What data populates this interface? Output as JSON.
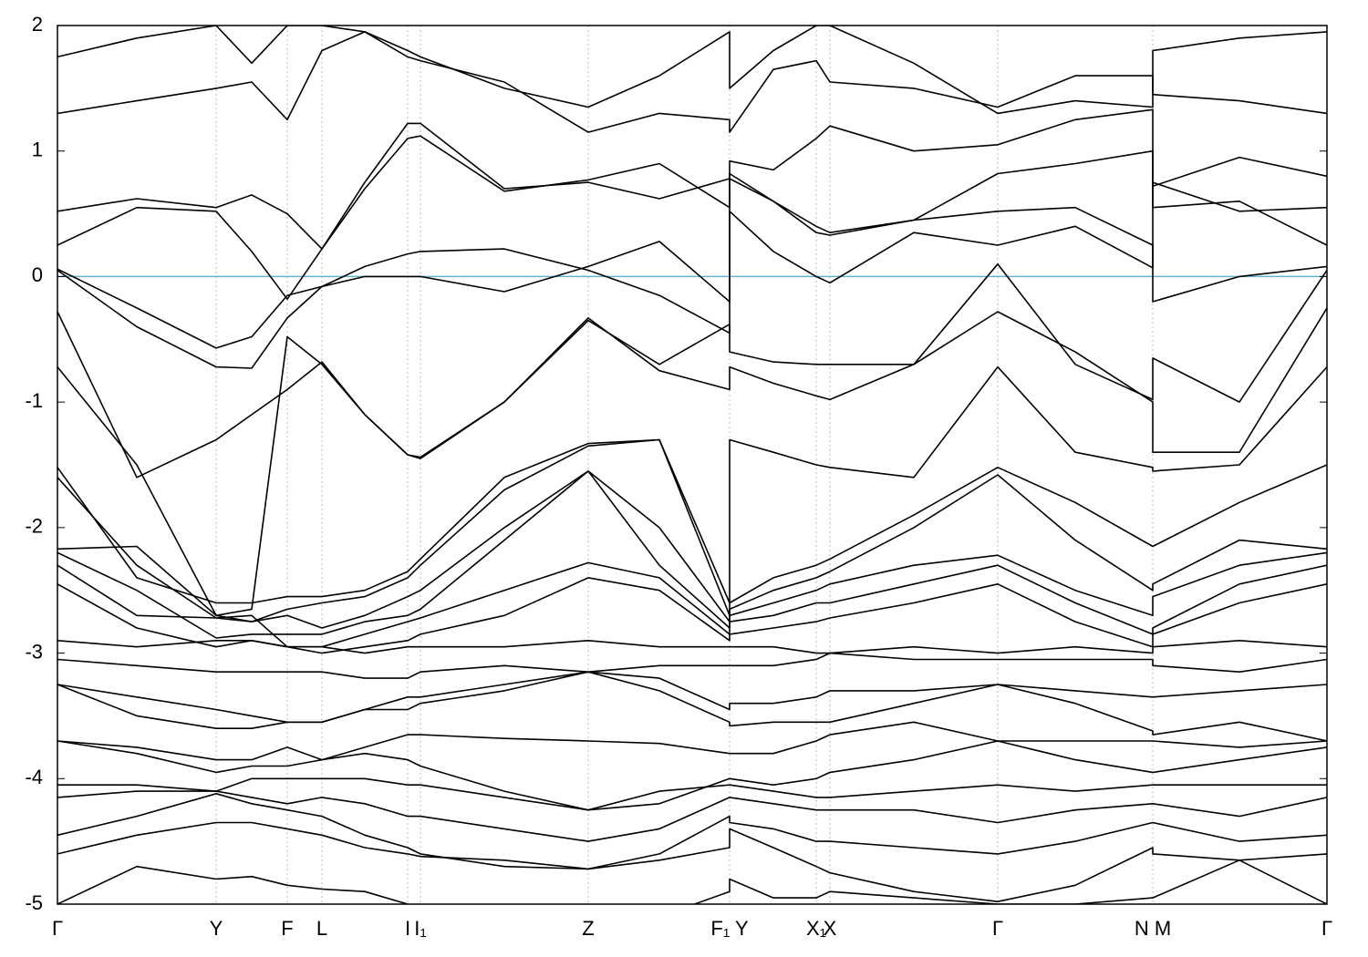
{
  "chart_data": {
    "type": "line",
    "color": "#000000",
    "xgrid": true,
    "zero_line": {
      "value": 0,
      "color": "#5fb4c8"
    },
    "xlim": [
      0,
      13.92
    ],
    "ylim": [
      -5,
      2
    ],
    "yticks": [
      -5,
      -4,
      -3,
      -2,
      -1,
      0,
      1,
      2
    ],
    "xticks": [
      {
        "value": 0,
        "label": "Γ"
      },
      {
        "value": 1.74,
        "label": "Y"
      },
      {
        "value": 2.52,
        "label": "F"
      },
      {
        "value": 2.9,
        "label": "L"
      },
      {
        "value": 3.84,
        "label": "I"
      },
      {
        "value": 3.98,
        "label": "I₁"
      },
      {
        "value": 5.82,
        "label": "Z"
      },
      {
        "value": 7.37,
        "label": "F₁ Y"
      },
      {
        "value": 8.32,
        "label": "X₁"
      },
      {
        "value": 8.47,
        "label": "X"
      },
      {
        "value": 10.31,
        "label": "Γ"
      },
      {
        "value": 12.01,
        "label": "N M"
      },
      {
        "value": 13.92,
        "label": "Γ"
      }
    ],
    "x": [
      0,
      0.87,
      1.74,
      2.13,
      2.52,
      2.9,
      3.37,
      3.84,
      3.98,
      4.9,
      5.82,
      6.6,
      7.37,
      7.37,
      7.85,
      8.32,
      8.47,
      9.39,
      10.31,
      11.16,
      12.01,
      12.01,
      12.96,
      13.92
    ],
    "series": [
      {
        "values": [
          0.06,
          -0.25,
          -0.57,
          -0.48,
          -0.15,
          -0.08,
          0.0,
          0.0,
          0.0,
          -0.12,
          0.08,
          0.28,
          -0.2,
          0.52,
          0.2,
          0.0,
          -0.05,
          0.35,
          0.25,
          0.4,
          0.07,
          0.75,
          0.52,
          0.55
        ]
      },
      {
        "values": [
          0.05,
          -0.4,
          -0.72,
          -0.73,
          -0.33,
          -0.08,
          0.08,
          0.18,
          0.2,
          0.22,
          0.05,
          -0.15,
          -0.45,
          0.78,
          0.6,
          0.35,
          0.33,
          0.45,
          0.52,
          0.55,
          0.25,
          -0.2,
          0.0,
          0.08
        ]
      },
      {
        "values": [
          0.25,
          0.55,
          0.52,
          0.2,
          -0.18,
          0.22,
          0.7,
          1.1,
          1.12,
          0.68,
          0.77,
          0.9,
          0.55,
          0.82,
          0.6,
          0.4,
          0.35,
          0.45,
          0.82,
          0.9,
          1.0,
          0.55,
          0.6,
          0.25
        ]
      },
      {
        "values": [
          0.52,
          0.62,
          0.55,
          0.65,
          0.5,
          0.22,
          0.75,
          1.22,
          1.22,
          0.7,
          0.75,
          0.62,
          0.78,
          0.92,
          0.85,
          1.1,
          1.2,
          1.0,
          1.05,
          1.25,
          1.33,
          0.72,
          0.95,
          0.8
        ]
      },
      {
        "values": [
          1.3,
          1.4,
          1.5,
          1.55,
          1.25,
          1.8,
          1.95,
          1.75,
          1.72,
          1.55,
          1.15,
          1.3,
          1.25,
          1.15,
          1.65,
          1.72,
          1.55,
          1.5,
          1.35,
          1.6,
          1.6,
          1.45,
          1.4,
          1.3
        ]
      },
      {
        "values": [
          1.75,
          1.9,
          2.0,
          1.7,
          2.0,
          2.0,
          1.95,
          1.8,
          1.75,
          1.5,
          1.35,
          1.6,
          1.95,
          1.5,
          1.8,
          2.0,
          2.0,
          1.7,
          1.3,
          1.4,
          1.35,
          1.8,
          1.9,
          1.95
        ]
      },
      {
        "values": [
          -0.28,
          -1.6,
          -1.3,
          -1.1,
          -0.9,
          -0.68,
          -1.1,
          -1.42,
          -1.45,
          -1.0,
          -0.35,
          -0.7,
          -0.38,
          -0.6,
          -0.68,
          -0.7,
          -0.7,
          -0.7,
          0.1,
          -0.7,
          -0.98,
          -0.65,
          -1.0,
          0.05
        ]
      },
      {
        "values": [
          -0.72,
          -1.5,
          -2.7,
          -2.65,
          -0.48,
          -0.7,
          -1.1,
          -1.42,
          -1.44,
          -1.0,
          -0.33,
          -0.75,
          -0.9,
          -0.72,
          -0.85,
          -0.95,
          -0.98,
          -0.7,
          -0.28,
          -0.6,
          -1.0,
          -1.4,
          -1.4,
          -0.25
        ]
      },
      {
        "values": [
          -1.52,
          -2.4,
          -2.6,
          -2.6,
          -2.55,
          -2.55,
          -2.5,
          -2.35,
          -2.25,
          -1.6,
          -1.33,
          -1.3,
          -2.6,
          -1.3,
          -1.4,
          -1.5,
          -1.52,
          -1.6,
          -0.72,
          -1.4,
          -1.52,
          -1.55,
          -1.5,
          -0.72
        ]
      },
      {
        "values": [
          -1.6,
          -2.3,
          -2.72,
          -2.75,
          -2.65,
          -2.6,
          -2.55,
          -2.4,
          -2.3,
          -1.7,
          -1.35,
          -1.3,
          -2.7,
          -2.6,
          -2.4,
          -2.3,
          -2.25,
          -1.9,
          -1.52,
          -1.8,
          -2.15,
          -2.15,
          -1.8,
          -1.5
        ]
      },
      {
        "values": [
          -2.17,
          -2.15,
          -2.7,
          -2.75,
          -2.7,
          -2.8,
          -2.7,
          -2.55,
          -2.5,
          -2.0,
          -1.55,
          -2.0,
          -2.75,
          -2.65,
          -2.5,
          -2.4,
          -2.35,
          -2.0,
          -1.58,
          -2.1,
          -2.5,
          -2.45,
          -2.1,
          -2.17
        ]
      },
      {
        "values": [
          -2.2,
          -2.5,
          -2.88,
          -2.85,
          -2.85,
          -2.85,
          -2.75,
          -2.7,
          -2.65,
          -2.1,
          -1.55,
          -2.3,
          -2.8,
          -2.7,
          -2.6,
          -2.5,
          -2.45,
          -2.3,
          -2.22,
          -2.5,
          -2.7,
          -2.55,
          -2.3,
          -2.2
        ]
      },
      {
        "values": [
          -2.3,
          -2.7,
          -2.72,
          -2.7,
          -2.95,
          -2.95,
          -2.85,
          -2.75,
          -2.72,
          -2.5,
          -2.28,
          -2.4,
          -2.85,
          -2.75,
          -2.7,
          -2.6,
          -2.6,
          -2.45,
          -2.3,
          -2.6,
          -2.85,
          -2.8,
          -2.45,
          -2.3
        ]
      },
      {
        "values": [
          -2.45,
          -2.8,
          -2.95,
          -2.9,
          -2.95,
          -3.0,
          -2.95,
          -2.9,
          -2.85,
          -2.7,
          -2.4,
          -2.5,
          -2.9,
          -2.85,
          -2.8,
          -2.75,
          -2.72,
          -2.6,
          -2.45,
          -2.75,
          -2.95,
          -2.85,
          -2.6,
          -2.45
        ]
      },
      {
        "values": [
          -2.9,
          -2.95,
          -2.9,
          -2.9,
          -2.95,
          -2.95,
          -3.0,
          -2.95,
          -2.95,
          -2.95,
          -2.9,
          -2.95,
          -2.95,
          -2.95,
          -2.95,
          -3.0,
          -3.0,
          -2.95,
          -3.0,
          -2.95,
          -3.0,
          -2.95,
          -2.9,
          -2.95
        ]
      },
      {
        "values": [
          -3.05,
          -3.1,
          -3.15,
          -3.15,
          -3.15,
          -3.15,
          -3.2,
          -3.2,
          -3.15,
          -3.1,
          -3.15,
          -3.1,
          -3.1,
          -3.1,
          -3.1,
          -3.05,
          -3.0,
          -3.05,
          -3.05,
          -3.05,
          -3.05,
          -3.1,
          -3.15,
          -3.05
        ]
      },
      {
        "values": [
          -3.25,
          -3.35,
          -3.45,
          -3.5,
          -3.55,
          -3.55,
          -3.45,
          -3.35,
          -3.35,
          -3.25,
          -3.15,
          -3.2,
          -3.45,
          -3.4,
          -3.4,
          -3.35,
          -3.3,
          -3.3,
          -3.25,
          -3.3,
          -3.35,
          -3.35,
          -3.3,
          -3.25
        ]
      },
      {
        "values": [
          -3.25,
          -3.5,
          -3.6,
          -3.6,
          -3.55,
          -3.55,
          -3.45,
          -3.45,
          -3.4,
          -3.3,
          -3.15,
          -3.3,
          -3.55,
          -3.58,
          -3.55,
          -3.55,
          -3.55,
          -3.4,
          -3.25,
          -3.4,
          -3.62,
          -3.65,
          -3.55,
          -3.7
        ]
      },
      {
        "values": [
          -3.7,
          -3.75,
          -3.85,
          -3.85,
          -3.75,
          -3.85,
          -3.75,
          -3.65,
          -3.65,
          -3.68,
          -3.7,
          -3.72,
          -3.8,
          -3.8,
          -3.8,
          -3.7,
          -3.65,
          -3.55,
          -3.7,
          -3.7,
          -3.7,
          -3.7,
          -3.75,
          -3.7
        ]
      },
      {
        "values": [
          -3.7,
          -3.8,
          -3.95,
          -3.9,
          -3.9,
          -3.85,
          -3.8,
          -3.85,
          -3.9,
          -4.1,
          -4.25,
          -4.2,
          -4.0,
          -4.0,
          -4.05,
          -4.0,
          -3.95,
          -3.85,
          -3.7,
          -3.85,
          -3.95,
          -3.95,
          -3.85,
          -3.75
        ]
      },
      {
        "values": [
          -4.05,
          -4.05,
          -4.1,
          -4.0,
          -4.0,
          -4.0,
          -4.0,
          -4.05,
          -4.05,
          -4.15,
          -4.25,
          -4.1,
          -4.05,
          -4.05,
          -4.1,
          -4.15,
          -4.15,
          -4.1,
          -4.05,
          -4.1,
          -4.05,
          -4.05,
          -4.05,
          -4.05
        ]
      },
      {
        "values": [
          -4.15,
          -4.1,
          -4.1,
          -4.15,
          -4.2,
          -4.15,
          -4.2,
          -4.3,
          -4.3,
          -4.4,
          -4.5,
          -4.4,
          -4.15,
          -4.15,
          -4.2,
          -4.25,
          -4.25,
          -4.25,
          -4.35,
          -4.25,
          -4.2,
          -4.2,
          -4.3,
          -4.15
        ]
      },
      {
        "values": [
          -4.45,
          -4.3,
          -4.12,
          -4.2,
          -4.25,
          -4.3,
          -4.45,
          -4.55,
          -4.6,
          -4.7,
          -4.72,
          -4.6,
          -4.3,
          -4.35,
          -4.4,
          -4.5,
          -4.5,
          -4.55,
          -4.6,
          -4.5,
          -4.35,
          -4.35,
          -4.5,
          -4.45
        ]
      },
      {
        "values": [
          -4.6,
          -4.45,
          -4.35,
          -4.35,
          -4.4,
          -4.45,
          -4.55,
          -4.6,
          -4.62,
          -4.65,
          -4.72,
          -4.65,
          -4.55,
          -4.4,
          -4.55,
          -4.7,
          -4.75,
          -4.9,
          -4.98,
          -4.85,
          -4.55,
          -4.6,
          -4.65,
          -4.6
        ]
      },
      {
        "values": [
          -5.0,
          -4.7,
          -4.8,
          -4.78,
          -4.85,
          -4.88,
          -4.9,
          -5.0,
          -5.05,
          -5.1,
          -5.1,
          -5.1,
          -4.9,
          -4.8,
          -4.95,
          -4.95,
          -4.9,
          -4.95,
          -5.0,
          -5.0,
          -4.95,
          -4.95,
          -4.65,
          -5.0
        ]
      }
    ]
  }
}
